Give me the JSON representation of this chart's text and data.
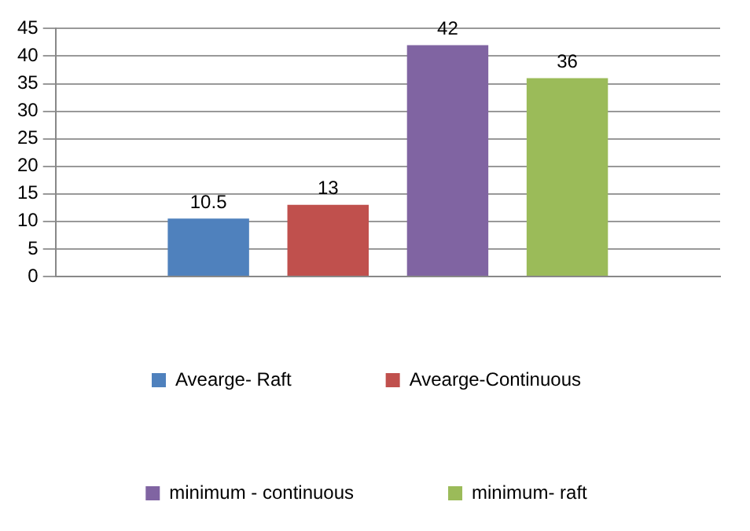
{
  "chart_data": {
    "type": "bar",
    "categories": [
      null
    ],
    "series": [
      {
        "name": "Avearge- Raft",
        "color": "#4f81bd",
        "values": [
          10.5
        ]
      },
      {
        "name": "Avearge-Continuous",
        "color": "#c0504d",
        "values": [
          13
        ]
      },
      {
        "name": "minimum - continuous",
        "color": "#8064a2",
        "values": [
          42
        ]
      },
      {
        "name": "minimum- raft",
        "color": "#9bbb59",
        "values": [
          36
        ]
      }
    ],
    "ylim": [
      0,
      45
    ],
    "yticks": [
      0,
      5,
      10,
      15,
      20,
      25,
      30,
      35,
      40,
      45
    ],
    "grid": "y",
    "legend": "bottom",
    "data_labels": true
  }
}
